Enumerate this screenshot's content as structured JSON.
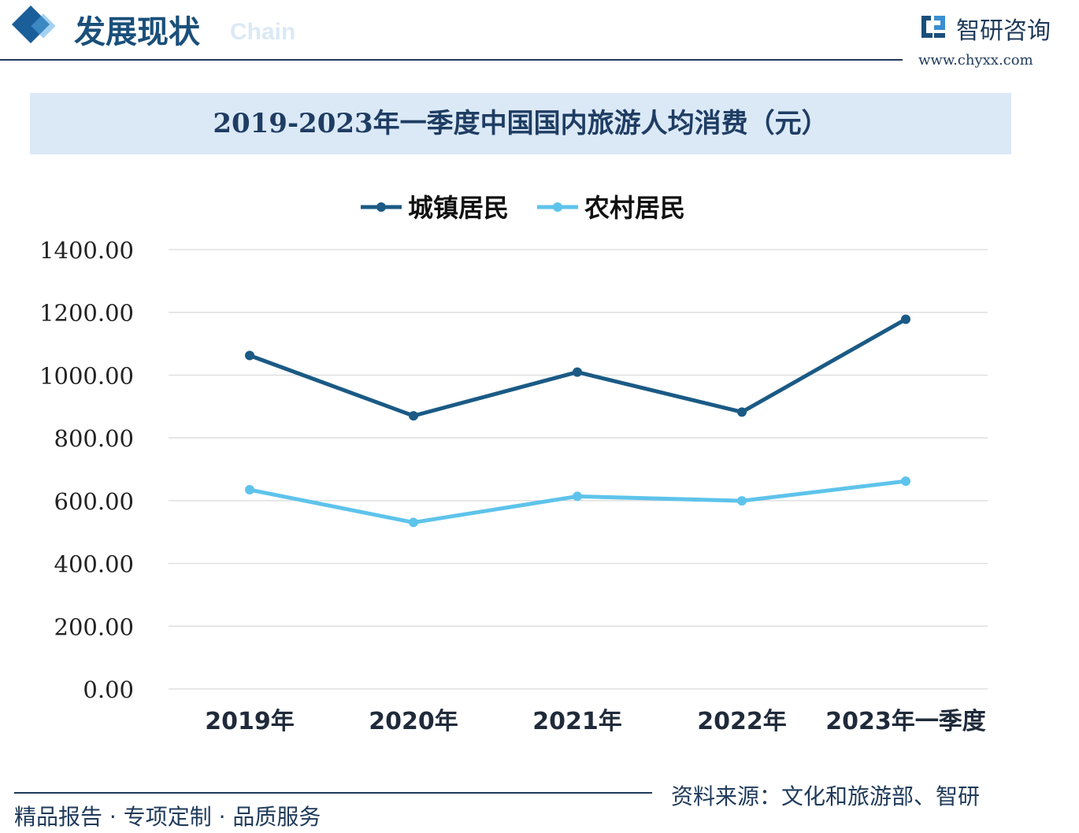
{
  "header": {
    "section_title": "发展现状",
    "section_ghost": "Chain",
    "brand_name": "智研咨询",
    "brand_url": "www.chyxx.com"
  },
  "colors": {
    "urban": "#1a5a85",
    "rural": "#5ec3eb",
    "grid": "#d9d9d9",
    "title_band": "#dbe9f7",
    "text_dark": "#1f3a5a"
  },
  "chart_data": {
    "type": "line",
    "title": "2019-2023年一季度中国国内旅游人均消费（元）",
    "categories": [
      "2019年",
      "2020年",
      "2021年",
      "2022年",
      "2023年一季度"
    ],
    "y_ticks": [
      "0.00",
      "200.00",
      "400.00",
      "600.00",
      "800.00",
      "1000.00",
      "1200.00",
      "1400.00"
    ],
    "ylim": [
      0,
      1400
    ],
    "grid": true,
    "legend_position": "top-center",
    "series": [
      {
        "name": "城镇居民",
        "values": [
          1062.6,
          870.3,
          1009.6,
          882.3,
          1178.0
        ]
      },
      {
        "name": "农村居民",
        "values": [
          634.7,
          530.5,
          613.6,
          599.4,
          662.0
        ]
      }
    ]
  },
  "footer": {
    "slogan": "精品报告 · 专项定制 · 品质服务",
    "source": "资料来源：文化和旅游部、智研"
  }
}
